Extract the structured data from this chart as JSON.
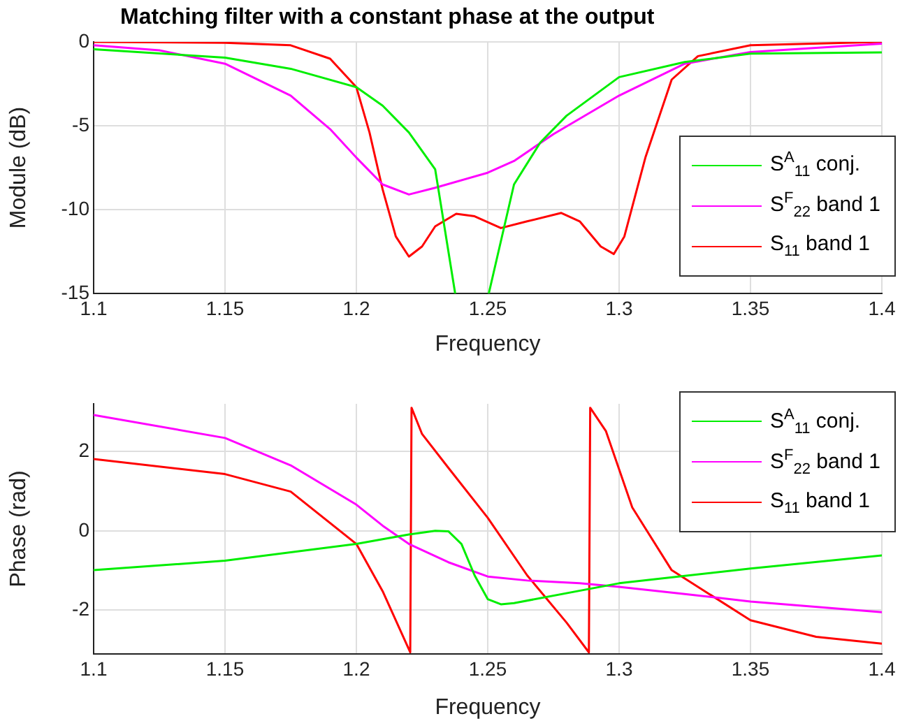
{
  "chart_data": [
    {
      "type": "line",
      "title": "Matching filter with a constant phase at the output",
      "xlabel": "Frequency",
      "ylabel": "Module (dB)",
      "xlim": [
        1.1,
        1.4
      ],
      "xticks": [
        1.1,
        1.15,
        1.2,
        1.25,
        1.3,
        1.35,
        1.4
      ],
      "ylim": [
        -15,
        0
      ],
      "yticks": [
        -15,
        -10,
        -5,
        0
      ],
      "grid": true,
      "legend": "right",
      "marker": "none",
      "line_style": "solid",
      "series": [
        {
          "name": "S$^{A}$$_{11}$ conj.",
          "color": "#00ee00",
          "x": [
            1.1,
            1.15,
            1.175,
            1.2,
            1.21,
            1.22,
            1.23,
            1.2376,
            1.244,
            1.2504,
            1.26,
            1.27,
            1.28,
            1.3,
            1.325,
            1.35,
            1.4
          ],
          "values": [
            -0.44,
            -0.94,
            -1.6,
            -2.7,
            -3.8,
            -5.4,
            -7.6,
            -15,
            null,
            -15,
            -8.5,
            -6,
            -4.4,
            -2.1,
            -1.2,
            -0.7,
            -0.62
          ]
        },
        {
          "name": "S$^{F}$$_{22}$ band 1",
          "color": "#ff00ff",
          "x": [
            1.1,
            1.125,
            1.15,
            1.175,
            1.19,
            1.2,
            1.21,
            1.22,
            1.23,
            1.25,
            1.26,
            1.275,
            1.3,
            1.325,
            1.35,
            1.4
          ],
          "values": [
            -0.2,
            -0.5,
            -1.3,
            -3.2,
            -5.2,
            -6.9,
            -8.5,
            -9.1,
            -8.7,
            -7.8,
            -7.1,
            -5.5,
            -3.2,
            -1.3,
            -0.6,
            -0.1
          ]
        },
        {
          "name": "S$_{11}$ band 1",
          "color": "#ff0000",
          "x": [
            1.1,
            1.15,
            1.175,
            1.19,
            1.2,
            1.205,
            1.21,
            1.215,
            1.22,
            1.225,
            1.23,
            1.238,
            1.245,
            1.255,
            1.265,
            1.278,
            1.285,
            1.293,
            1.298,
            1.302,
            1.31,
            1.32,
            1.33,
            1.35,
            1.4
          ],
          "values": [
            0,
            -0.05,
            -0.2,
            -1,
            -2.7,
            -5.4,
            -8.8,
            -11.6,
            -12.8,
            -12.2,
            -11,
            -10.25,
            -10.4,
            -11.1,
            -10.7,
            -10.2,
            -10.7,
            -12.2,
            -12.65,
            -11.6,
            -6.9,
            -2.25,
            -0.85,
            -0.2,
            0
          ]
        }
      ]
    },
    {
      "type": "line",
      "xlabel": "Frequency",
      "ylabel": "Phase (rad)",
      "xlim": [
        1.1,
        1.4
      ],
      "xticks": [
        1.1,
        1.15,
        1.2,
        1.25,
        1.3,
        1.35,
        1.4
      ],
      "ylim": [
        -3.1,
        3.2
      ],
      "yticks": [
        -2,
        0,
        2
      ],
      "grid": true,
      "legend": "top right",
      "marker": "none",
      "line_style": "solid",
      "series": [
        {
          "name": "S$^{A}$$_{11}$ conj.",
          "color": "#00ee00",
          "x": [
            1.1,
            1.15,
            1.2,
            1.22,
            1.23,
            1.235,
            1.24,
            1.245,
            1.25,
            1.255,
            1.26,
            1.3,
            1.35,
            1.4
          ],
          "values": [
            -0.99,
            -0.75,
            -0.33,
            -0.09,
            0,
            -0.01,
            -0.33,
            -1.12,
            -1.72,
            -1.85,
            -1.82,
            -1.32,
            -0.95,
            -0.62
          ]
        },
        {
          "name": "S$^{F}$$_{22}$ band 1",
          "color": "#ff00ff",
          "x": [
            1.1,
            1.15,
            1.175,
            1.2,
            1.21,
            1.22,
            1.235,
            1.25,
            1.265,
            1.285,
            1.3,
            1.325,
            1.35,
            1.4
          ],
          "values": [
            2.92,
            2.34,
            1.65,
            0.66,
            0.13,
            -0.33,
            -0.79,
            -1.15,
            -1.25,
            -1.32,
            -1.41,
            -1.59,
            -1.78,
            -2.05
          ]
        },
        {
          "name": "S$_{11}$ band 1",
          "color": "#ff0000",
          "x": [
            1.1,
            1.15,
            1.175,
            1.2,
            1.21,
            1.2205,
            1.221,
            1.225,
            1.235,
            1.25,
            1.265,
            1.28,
            1.2885,
            1.289,
            1.295,
            1.305,
            1.32,
            1.35,
            1.375,
            1.4
          ],
          "values": [
            1.81,
            1.43,
            0.99,
            -0.33,
            -1.52,
            -3.06,
            3.1,
            2.44,
            1.59,
            0.33,
            -1.12,
            -2.31,
            -3.06,
            3.1,
            2.51,
            0.59,
            -0.99,
            -2.25,
            -2.67,
            -2.84
          ]
        }
      ]
    }
  ]
}
